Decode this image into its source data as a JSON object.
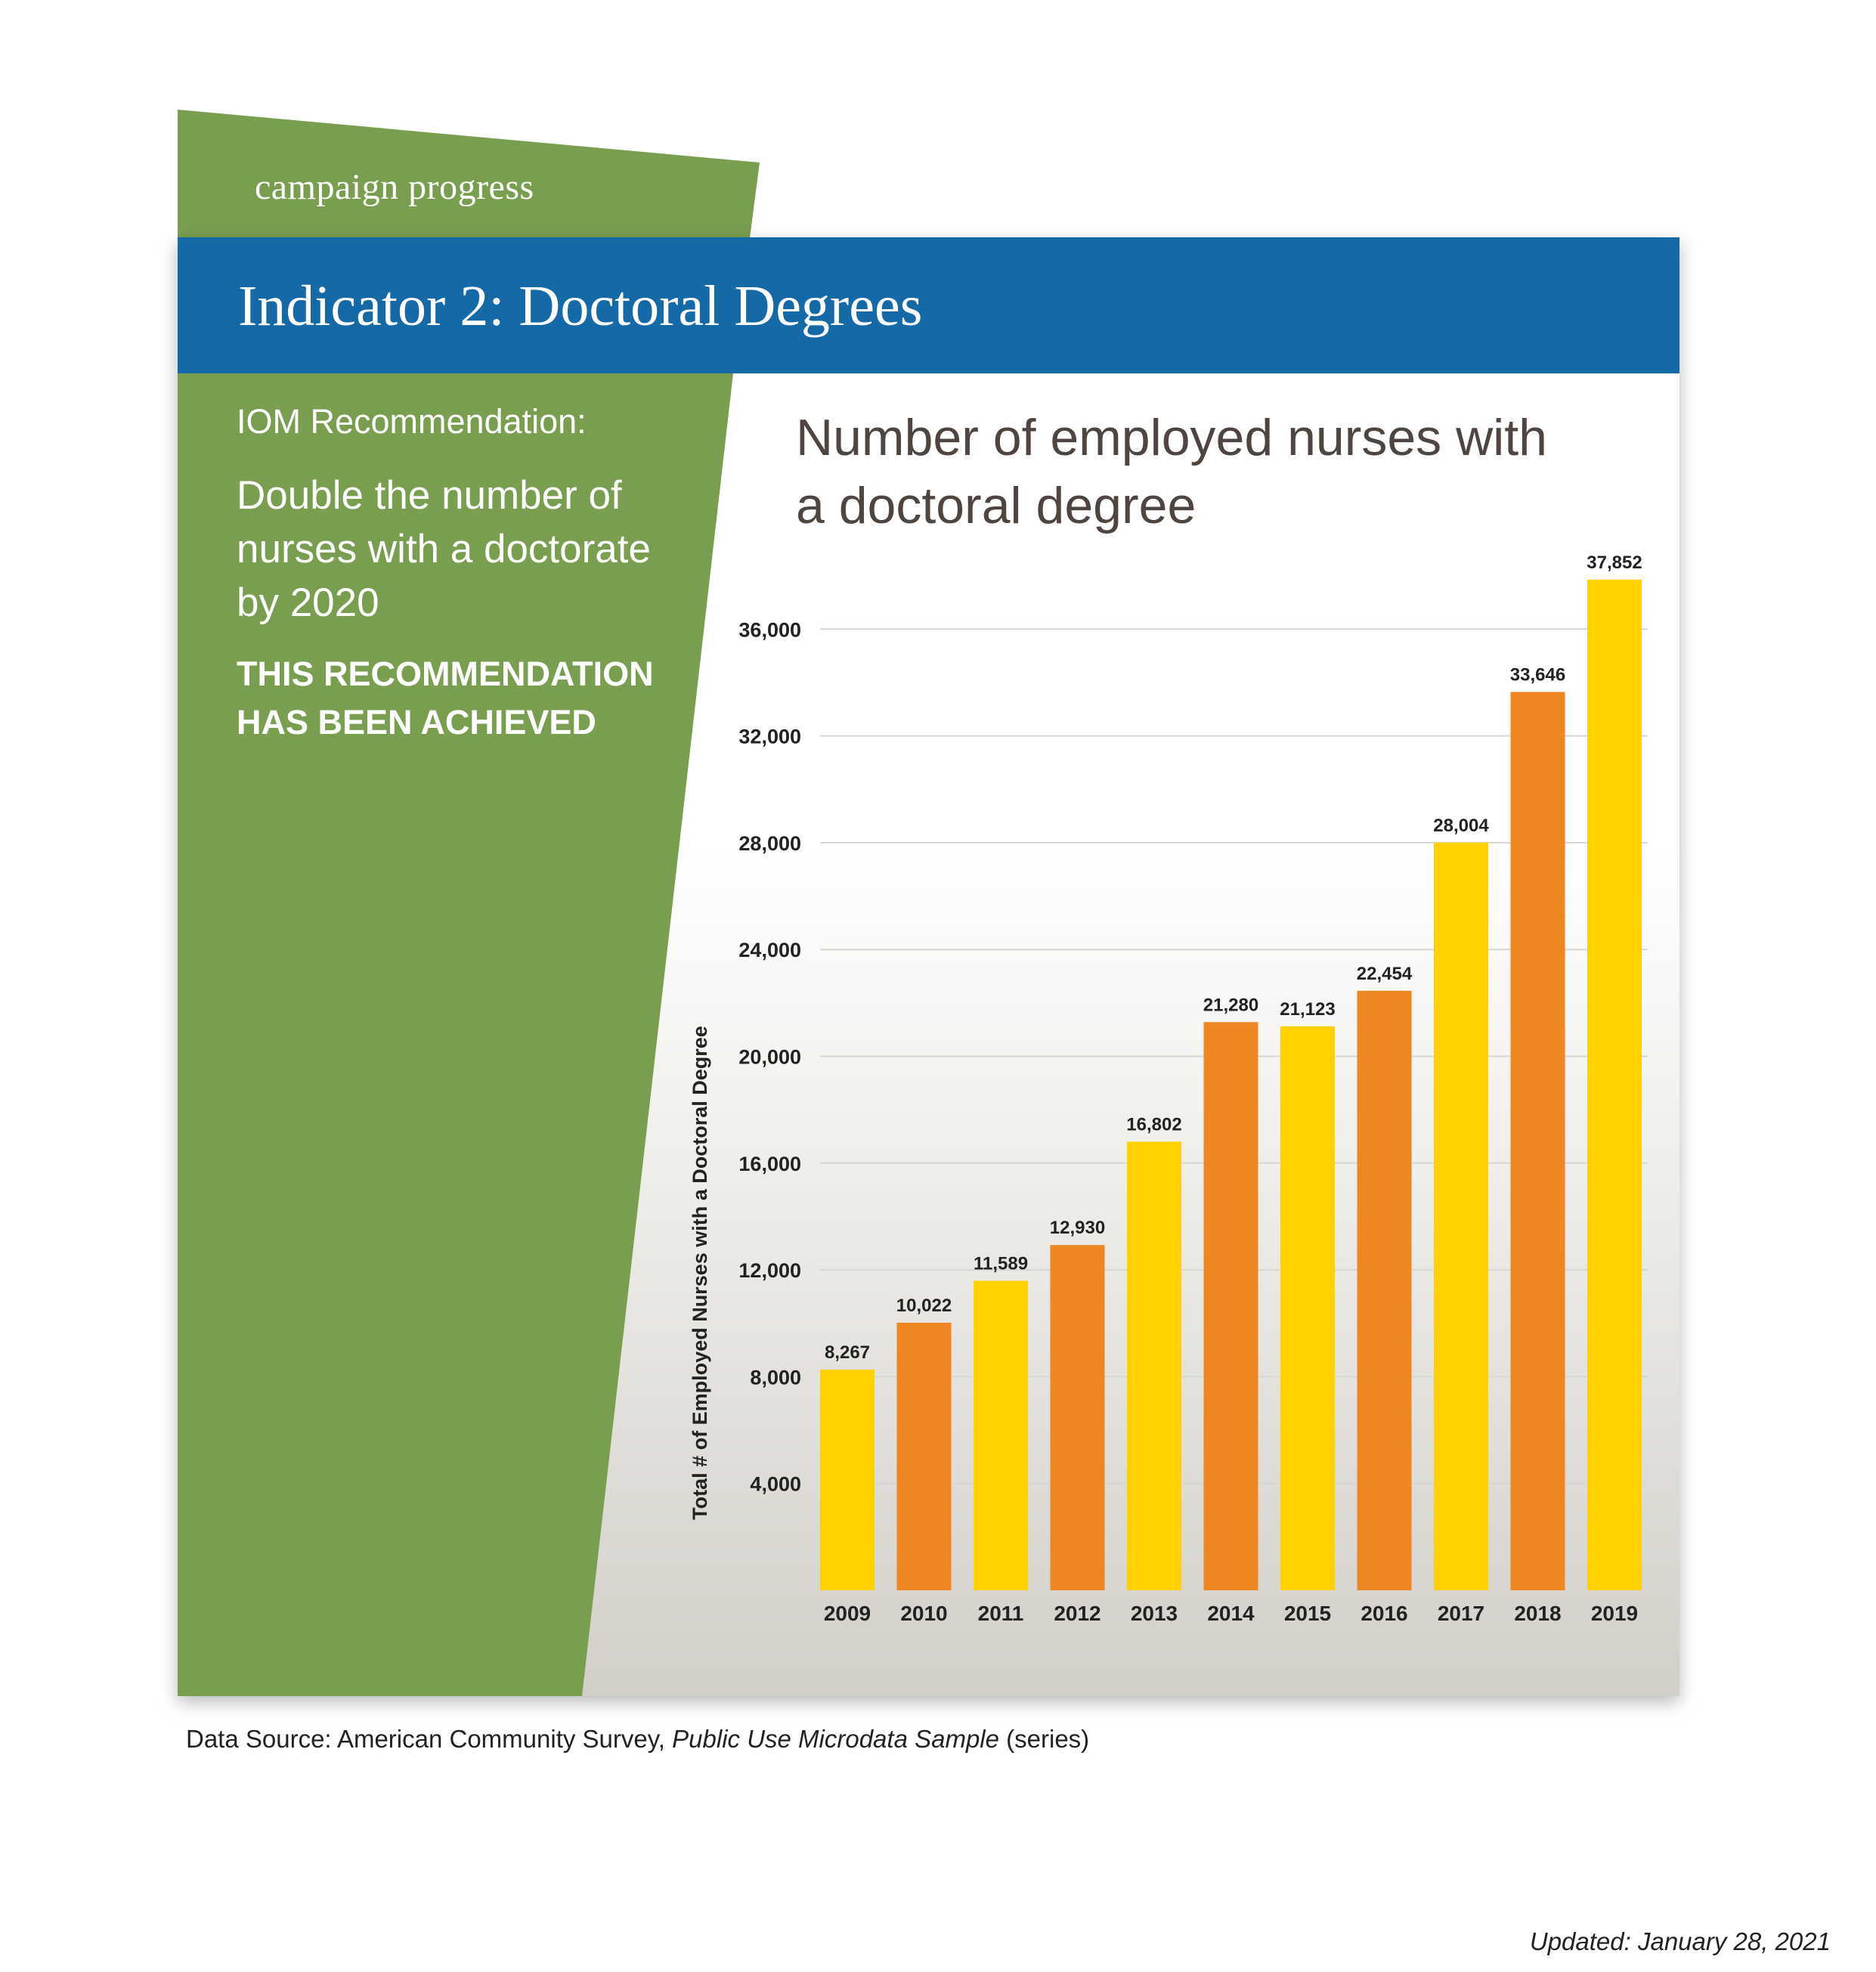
{
  "header": {
    "tab_label": "campaign progress",
    "title": "Indicator 2: Doctoral Degrees"
  },
  "recommendation": {
    "label": "IOM Recommendation:",
    "text": "Double the number of nurses with a doctorate by 2020",
    "status": "THIS RECOMMENDATION HAS BEEN ACHIEVED"
  },
  "colors": {
    "green": "#7a9e50",
    "blue": "#1569a6",
    "yellow": "#ffd100",
    "orange": "#ee8624"
  },
  "chart_data": {
    "type": "bar",
    "title": "Number of employed nurses with a doctoral degree",
    "xlabel": "",
    "ylabel": "Total # of Employed Nurses with a Doctoral Degree",
    "categories": [
      "2009",
      "2010",
      "2011",
      "2012",
      "2013",
      "2014",
      "2015",
      "2016",
      "2017",
      "2018",
      "2019"
    ],
    "values": [
      8267,
      10022,
      11589,
      12930,
      16802,
      21280,
      21123,
      22454,
      28004,
      33646,
      37852
    ],
    "value_labels": [
      "8,267",
      "10,022",
      "11,589",
      "12,930",
      "16,802",
      "21,280",
      "21,123",
      "22,454",
      "28,004",
      "33,646",
      "37,852"
    ],
    "bar_colors": [
      "#ffd100",
      "#ee8624",
      "#ffd100",
      "#ee8624",
      "#ffd100",
      "#ee8624",
      "#ffd100",
      "#ee8624",
      "#ffd100",
      "#ee8624",
      "#ffd100"
    ],
    "yticks": [
      4000,
      8000,
      12000,
      16000,
      20000,
      24000,
      28000,
      32000,
      36000
    ],
    "ytick_labels": [
      "4,000",
      "8,000",
      "12,000",
      "16,000",
      "20,000",
      "24,000",
      "28,000",
      "32,000",
      "36,000"
    ],
    "ylim": [
      0,
      38000
    ],
    "grid": true,
    "legend": "none"
  },
  "footer": {
    "source_prefix": "Data Source: American Community Survey, ",
    "source_italic": "Public Use Microdata Sample",
    "source_suffix": " (series)",
    "updated": "Updated: January 28, 2021"
  }
}
